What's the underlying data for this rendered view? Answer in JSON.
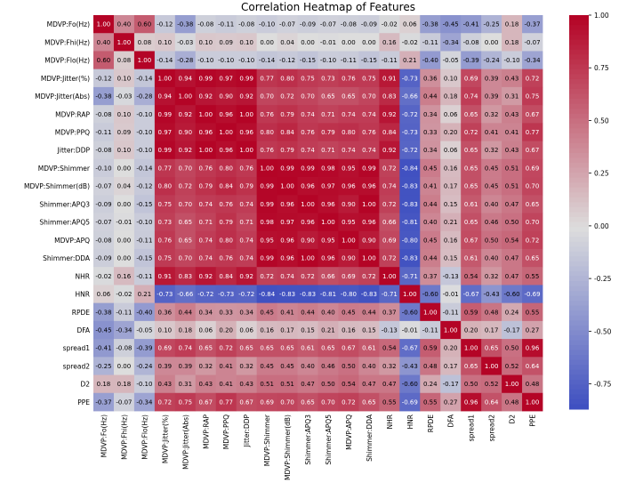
{
  "chart_data": {
    "type": "heatmap",
    "title": "Correlation Heatmap of Features",
    "labels": [
      "MDVP:Fo(Hz)",
      "MDVP:Fhi(Hz)",
      "MDVP:Flo(Hz)",
      "MDVP:Jitter(%)",
      "MDVP:Jitter(Abs)",
      "MDVP:RAP",
      "MDVP:PPQ",
      "Jitter:DDP",
      "MDVP:Shimmer",
      "MDVP:Shimmer(dB)",
      "Shimmer:APQ3",
      "Shimmer:APQ5",
      "MDVP:APQ",
      "Shimmer:DDA",
      "NHR",
      "HNR",
      "RPDE",
      "DFA",
      "spread1",
      "spread2",
      "D2",
      "PPE"
    ],
    "matrix": [
      [
        1.0,
        0.4,
        0.6,
        -0.12,
        -0.38,
        -0.08,
        -0.11,
        -0.08,
        -0.1,
        -0.07,
        -0.09,
        -0.07,
        -0.08,
        -0.09,
        -0.02,
        0.06,
        -0.38,
        -0.45,
        -0.41,
        -0.25,
        0.18,
        -0.37
      ],
      [
        0.4,
        1.0,
        0.08,
        0.1,
        -0.03,
        0.1,
        0.09,
        0.1,
        0.0,
        0.04,
        -0.0,
        -0.01,
        0.0,
        -0.0,
        0.16,
        -0.02,
        -0.11,
        -0.34,
        -0.08,
        -0.0,
        0.18,
        -0.07
      ],
      [
        0.6,
        0.08,
        1.0,
        -0.14,
        -0.28,
        -0.1,
        -0.1,
        -0.1,
        -0.14,
        -0.12,
        -0.15,
        -0.1,
        -0.11,
        -0.15,
        -0.11,
        0.21,
        -0.4,
        -0.05,
        -0.39,
        -0.24,
        -0.1,
        -0.34
      ],
      [
        -0.12,
        0.1,
        -0.14,
        1.0,
        0.94,
        0.99,
        0.97,
        0.99,
        0.77,
        0.8,
        0.75,
        0.73,
        0.76,
        0.75,
        0.91,
        -0.73,
        0.36,
        0.1,
        0.69,
        0.39,
        0.43,
        0.72
      ],
      [
        -0.38,
        -0.03,
        -0.28,
        0.94,
        1.0,
        0.92,
        0.9,
        0.92,
        0.7,
        0.72,
        0.7,
        0.65,
        0.65,
        0.7,
        0.83,
        -0.66,
        0.44,
        0.18,
        0.74,
        0.39,
        0.31,
        0.75
      ],
      [
        -0.08,
        0.1,
        -0.1,
        0.99,
        0.92,
        1.0,
        0.96,
        1.0,
        0.76,
        0.79,
        0.74,
        0.71,
        0.74,
        0.74,
        0.92,
        -0.72,
        0.34,
        0.06,
        0.65,
        0.32,
        0.43,
        0.67
      ],
      [
        -0.11,
        0.09,
        -0.1,
        0.97,
        0.9,
        0.96,
        1.0,
        0.96,
        0.8,
        0.84,
        0.76,
        0.79,
        0.8,
        0.76,
        0.84,
        -0.73,
        0.33,
        0.2,
        0.72,
        0.41,
        0.41,
        0.77
      ],
      [
        -0.08,
        0.1,
        -0.1,
        0.99,
        0.92,
        1.0,
        0.96,
        1.0,
        0.76,
        0.79,
        0.74,
        0.71,
        0.74,
        0.74,
        0.92,
        -0.72,
        0.34,
        0.06,
        0.65,
        0.32,
        0.43,
        0.67
      ],
      [
        -0.1,
        0.0,
        -0.14,
        0.77,
        0.7,
        0.76,
        0.8,
        0.76,
        1.0,
        0.99,
        0.99,
        0.98,
        0.95,
        0.99,
        0.72,
        -0.84,
        0.45,
        0.16,
        0.65,
        0.45,
        0.51,
        0.69
      ],
      [
        -0.07,
        0.04,
        -0.12,
        0.8,
        0.72,
        0.79,
        0.84,
        0.79,
        0.99,
        1.0,
        0.96,
        0.97,
        0.96,
        0.96,
        0.74,
        -0.83,
        0.41,
        0.17,
        0.65,
        0.45,
        0.51,
        0.7
      ],
      [
        -0.09,
        -0.0,
        -0.15,
        0.75,
        0.7,
        0.74,
        0.76,
        0.74,
        0.99,
        0.96,
        1.0,
        0.96,
        0.9,
        1.0,
        0.72,
        -0.83,
        0.44,
        0.15,
        0.61,
        0.4,
        0.47,
        0.65
      ],
      [
        -0.07,
        -0.01,
        -0.1,
        0.73,
        0.65,
        0.71,
        0.79,
        0.71,
        0.98,
        0.97,
        0.96,
        1.0,
        0.95,
        0.96,
        0.66,
        -0.81,
        0.4,
        0.21,
        0.65,
        0.46,
        0.5,
        0.7
      ],
      [
        -0.08,
        0.0,
        -0.11,
        0.76,
        0.65,
        0.74,
        0.8,
        0.74,
        0.95,
        0.96,
        0.9,
        0.95,
        1.0,
        0.9,
        0.69,
        -0.8,
        0.45,
        0.16,
        0.67,
        0.5,
        0.54,
        0.72
      ],
      [
        -0.09,
        -0.0,
        -0.15,
        0.75,
        0.7,
        0.74,
        0.76,
        0.74,
        0.99,
        0.96,
        1.0,
        0.96,
        0.9,
        1.0,
        0.72,
        -0.83,
        0.44,
        0.15,
        0.61,
        0.4,
        0.47,
        0.65
      ],
      [
        -0.02,
        0.16,
        -0.11,
        0.91,
        0.83,
        0.92,
        0.84,
        0.92,
        0.72,
        0.74,
        0.72,
        0.66,
        0.69,
        0.72,
        1.0,
        -0.71,
        0.37,
        -0.13,
        0.54,
        0.32,
        0.47,
        0.55
      ],
      [
        0.06,
        -0.02,
        0.21,
        -0.73,
        -0.66,
        -0.72,
        -0.73,
        -0.72,
        -0.84,
        -0.83,
        -0.83,
        -0.81,
        -0.8,
        -0.83,
        -0.71,
        1.0,
        -0.6,
        -0.01,
        -0.67,
        -0.43,
        -0.6,
        -0.69
      ],
      [
        -0.38,
        -0.11,
        -0.4,
        0.36,
        0.44,
        0.34,
        0.33,
        0.34,
        0.45,
        0.41,
        0.44,
        0.4,
        0.45,
        0.44,
        0.37,
        -0.6,
        1.0,
        -0.11,
        0.59,
        0.48,
        0.24,
        0.55
      ],
      [
        -0.45,
        -0.34,
        -0.05,
        0.1,
        0.18,
        0.06,
        0.2,
        0.06,
        0.16,
        0.17,
        0.15,
        0.21,
        0.16,
        0.15,
        -0.13,
        -0.01,
        -0.11,
        1.0,
        0.2,
        0.17,
        -0.17,
        0.27
      ],
      [
        -0.41,
        -0.08,
        -0.39,
        0.69,
        0.74,
        0.65,
        0.72,
        0.65,
        0.65,
        0.65,
        0.61,
        0.65,
        0.67,
        0.61,
        0.54,
        -0.67,
        0.59,
        0.2,
        1.0,
        0.65,
        0.5,
        0.96
      ],
      [
        -0.25,
        -0.0,
        -0.24,
        0.39,
        0.39,
        0.32,
        0.41,
        0.32,
        0.45,
        0.45,
        0.4,
        0.46,
        0.5,
        0.4,
        0.32,
        -0.43,
        0.48,
        0.17,
        0.65,
        1.0,
        0.52,
        0.64
      ],
      [
        0.18,
        0.18,
        -0.1,
        0.43,
        0.31,
        0.43,
        0.41,
        0.43,
        0.51,
        0.51,
        0.47,
        0.5,
        0.54,
        0.47,
        0.47,
        -0.6,
        0.24,
        -0.17,
        0.5,
        0.52,
        1.0,
        0.48
      ],
      [
        -0.37,
        -0.07,
        -0.34,
        0.72,
        0.75,
        0.67,
        0.77,
        0.67,
        0.69,
        0.7,
        0.65,
        0.7,
        0.72,
        0.65,
        0.55,
        -0.69,
        0.55,
        0.27,
        0.96,
        0.64,
        0.48,
        1.0
      ]
    ],
    "vmin": -0.87,
    "vmax": 1.0,
    "colorbar_ticks": [
      1.0,
      0.75,
      0.5,
      0.25,
      0.0,
      -0.25,
      -0.5,
      -0.75
    ],
    "colormap": "coolwarm",
    "colors": {
      "low": "#3b4cc0",
      "mid": "#dddddd",
      "high": "#b40426"
    }
  }
}
